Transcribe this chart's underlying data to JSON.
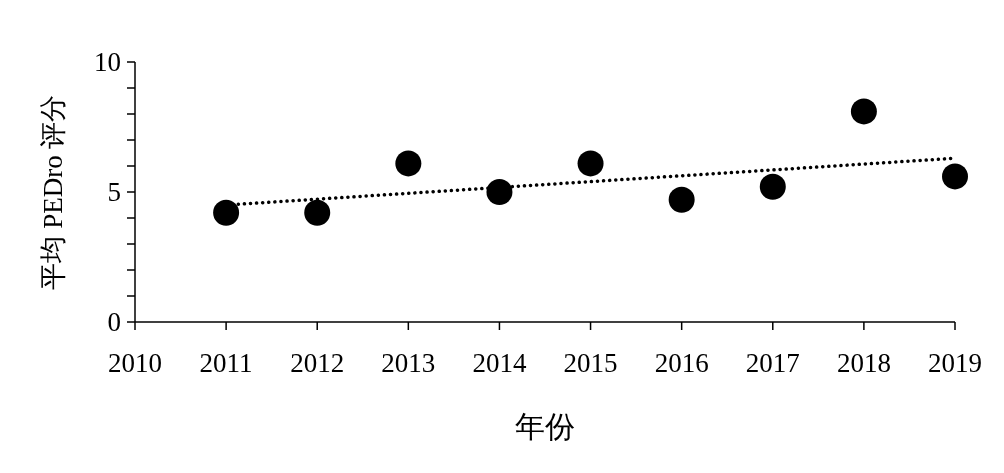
{
  "chart_data": {
    "type": "scatter",
    "xlabel": "年份",
    "ylabel": "平均 PEDro 评分",
    "x": [
      2011,
      2012,
      2013,
      2014,
      2015,
      2016,
      2017,
      2018,
      2019
    ],
    "series": [
      {
        "color": "#000000",
        "marker": "circle",
        "values": [
          4.2,
          4.2,
          6.1,
          5.0,
          6.1,
          4.7,
          5.2,
          8.1,
          5.6
        ]
      },
      {
        "type": "line",
        "color": "#000000",
        "line_style": "dotted",
        "marker": "none",
        "x": [
          2011,
          2019
        ],
        "values": [
          4.5,
          6.3
        ]
      }
    ],
    "xlim": [
      2010,
      2019
    ],
    "xticks": [
      2010,
      2011,
      2012,
      2013,
      2014,
      2015,
      2016,
      2017,
      2018,
      2019
    ],
    "ylim": [
      0,
      10
    ],
    "yticks": [
      0,
      {
        "value": 1,
        "label": null
      },
      {
        "value": 2,
        "label": null
      },
      {
        "value": 3,
        "label": null
      },
      {
        "value": 4,
        "label": null
      },
      5,
      {
        "value": 6,
        "label": null
      },
      {
        "value": 7,
        "label": null
      },
      {
        "value": 8,
        "label": null
      },
      {
        "value": 9,
        "label": null
      },
      10
    ],
    "grid": false
  }
}
